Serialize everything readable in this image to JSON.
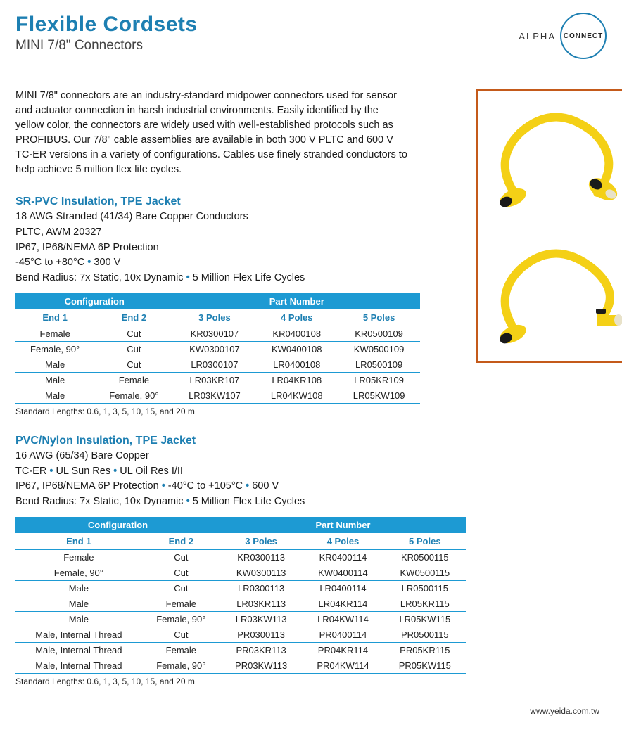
{
  "header": {
    "title": "Flexible Cordsets",
    "subtitle": "MINI 7/8\" Connectors",
    "logo_alpha": "ALPHA",
    "logo_connect": "CONNECT"
  },
  "intro": "MINI 7/8\" connectors are an industry-standard midpower connectors used for sensor and actuator connection in harsh industrial environments. Easily identified by the yellow color, the connectors are widely used with well-established protocols such as PROFIBUS. Our 7/8\" cable assemblies are available in both 300 V PLTC and 600 V TC-ER versions in a variety of configurations. Cables use finely stranded conductors to help achieve 5 million flex life cycles.",
  "section1": {
    "heading": "SR-PVC Insulation, TPE Jacket",
    "spec1": "18 AWG Stranded (41/34) Bare Copper Conductors",
    "spec2": "PLTC, AWM 20327",
    "spec3": "IP67, IP68/NEMA 6P Protection",
    "spec4a": "-45°C to +80°C",
    "spec4b": "300 V",
    "spec5a": "Bend Radius: 7x Static, 10x Dynamic",
    "spec5b": "5 Million Flex Life Cycles",
    "table": {
      "group_headers": [
        "Configuration",
        "Part Number"
      ],
      "columns": [
        "End 1",
        "End 2",
        "3 Poles",
        "4 Poles",
        "5 Poles"
      ],
      "rows": [
        [
          "Female",
          "Cut",
          "KR0300107",
          "KR0400108",
          "KR0500109"
        ],
        [
          "Female, 90°",
          "Cut",
          "KW0300107",
          "KW0400108",
          "KW0500109"
        ],
        [
          "Male",
          "Cut",
          "LR0300107",
          "LR0400108",
          "LR0500109"
        ],
        [
          "Male",
          "Female",
          "LR03KR107",
          "LR04KR108",
          "LR05KR109"
        ],
        [
          "Male",
          "Female, 90°",
          "LR03KW107",
          "LR04KW108",
          "LR05KW109"
        ]
      ]
    },
    "footnote": "Standard Lengths: 0.6, 1, 3, 5, 10, 15, and 20 m"
  },
  "section2": {
    "heading": "PVC/Nylon Insulation, TPE Jacket",
    "spec1": "16 AWG (65/34) Bare Copper",
    "spec2a": "TC-ER",
    "spec2b": "UL Sun Res",
    "spec2c": "UL Oil Res I/II",
    "spec3a": "IP67, IP68/NEMA 6P Protection",
    "spec3b": "-40°C to +105°C",
    "spec3c": "600 V",
    "spec4a": "Bend Radius: 7x Static, 10x Dynamic",
    "spec4b": "5 Million Flex Life Cycles",
    "table": {
      "group_headers": [
        "Configuration",
        "Part Number"
      ],
      "columns": [
        "End 1",
        "End 2",
        "3 Poles",
        "4 Poles",
        "5 Poles"
      ],
      "rows": [
        [
          "Female",
          "Cut",
          "KR0300113",
          "KR0400114",
          "KR0500115"
        ],
        [
          "Female, 90°",
          "Cut",
          "KW0300113",
          "KW0400114",
          "KW0500115"
        ],
        [
          "Male",
          "Cut",
          "LR0300113",
          "LR0400114",
          "LR0500115"
        ],
        [
          "Male",
          "Female",
          "LR03KR113",
          "LR04KR114",
          "LR05KR115"
        ],
        [
          "Male",
          "Female, 90°",
          "LR03KW113",
          "LR04KW114",
          "LR05KW115"
        ],
        [
          "Male, Internal Thread",
          "Cut",
          "PR0300113",
          "PR0400114",
          "PR0500115"
        ],
        [
          "Male, Internal Thread",
          "Female",
          "PR03KR113",
          "PR04KR114",
          "PR05KR115"
        ],
        [
          "Male, Internal Thread",
          "Female, 90°",
          "PR03KW113",
          "PR04KW114",
          "PR05KW115"
        ]
      ]
    },
    "footnote": "Standard Lengths: 0.6, 1, 3, 5, 10, 15, and 20 m"
  },
  "footer_url": "www.yeida.com.tw",
  "colors": {
    "brand_blue": "#1d7fb2",
    "table_header_blue": "#1d9ad3",
    "image_border": "#c45a1a",
    "cable_yellow": "#f4d016",
    "cable_black": "#1a1a1a"
  }
}
